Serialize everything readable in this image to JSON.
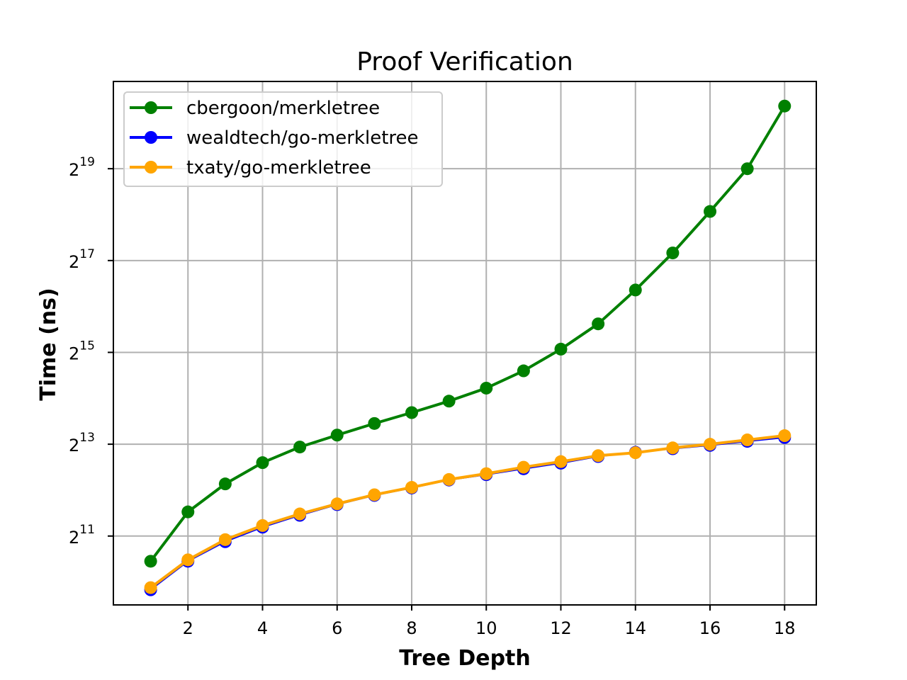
{
  "chart_data": {
    "type": "line",
    "title": "Proof Verification",
    "xlabel": "Tree Depth",
    "ylabel": "Time (ns)",
    "yscale": "log2",
    "x": [
      1,
      2,
      3,
      4,
      5,
      6,
      7,
      8,
      9,
      10,
      11,
      12,
      13,
      14,
      15,
      16,
      17,
      18
    ],
    "xticks": [
      2,
      4,
      6,
      8,
      10,
      12,
      14,
      16,
      18
    ],
    "xtick_labels": [
      "2",
      "4",
      "6",
      "8",
      "10",
      "12",
      "14",
      "16",
      "18"
    ],
    "yticks_exp": [
      11,
      13,
      15,
      17,
      19
    ],
    "ytick_labels": [
      "2^11",
      "2^13",
      "2^15",
      "2^17",
      "2^19"
    ],
    "xlim": [
      0.0,
      18.85
    ],
    "ylim_log2": [
      9.5,
      20.9
    ],
    "grid": true,
    "legend_position": "upper left",
    "series": [
      {
        "name": "cbergoon/merkletree",
        "color": "#008000",
        "values": [
          1400,
          2950,
          4500,
          6200,
          7850,
          9400,
          11200,
          13200,
          15700,
          19100,
          24800,
          34400,
          50400,
          84000,
          147000,
          275000,
          524000,
          1350000
        ]
      },
      {
        "name": "wealdtech/go-merkletree",
        "color": "#0000ff",
        "values": [
          910,
          1400,
          1880,
          2340,
          2800,
          3290,
          3780,
          4230,
          4770,
          5170,
          5650,
          6150,
          6800,
          7250,
          7650,
          8050,
          8550,
          9050
        ]
      },
      {
        "name": "txaty/go-merkletree",
        "color": "#ffa500",
        "values": [
          940,
          1430,
          1940,
          2400,
          2860,
          3330,
          3820,
          4270,
          4810,
          5250,
          5790,
          6300,
          6890,
          7200,
          7750,
          8190,
          8740,
          9320
        ]
      }
    ]
  }
}
